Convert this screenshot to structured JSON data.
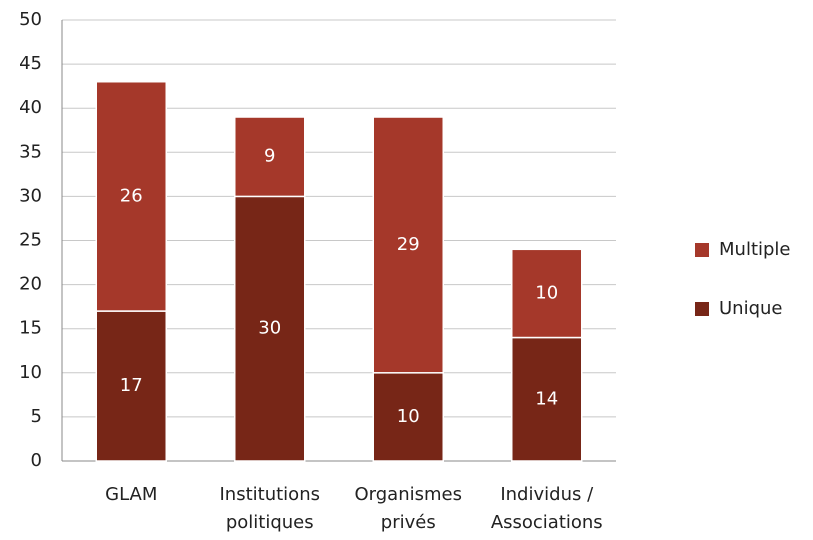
{
  "chart_data": {
    "type": "stacked_bar",
    "categories": [
      "GLAM",
      "Institutions politiques",
      "Organismes privés",
      "Individus / Associations"
    ],
    "series": [
      {
        "name": "Unique",
        "color": "#772617",
        "values": [
          17,
          30,
          10,
          14
        ]
      },
      {
        "name": "Multiple",
        "color": "#a5382a",
        "values": [
          26,
          9,
          29,
          10
        ]
      }
    ],
    "ylim": [
      0,
      50
    ],
    "yticks": [
      0,
      5,
      10,
      15,
      20,
      25,
      30,
      35,
      40,
      45,
      50
    ],
    "grid": true,
    "legend": "right"
  }
}
